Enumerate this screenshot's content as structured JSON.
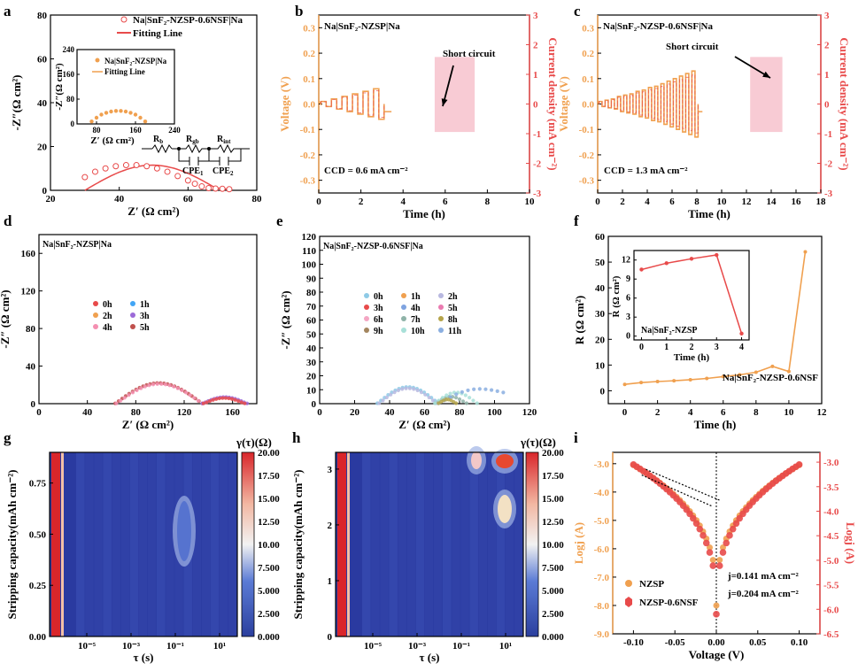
{
  "colors": {
    "orange": "#f0a04f",
    "red": "#e84a4a",
    "blue_dark": "#3949ab",
    "pink_box": "#f6b9c5"
  },
  "chart_data": [
    {
      "panel": "a",
      "type": "scatter",
      "panel_label": "a",
      "xlabel": "Z′ (Ω cm²)",
      "ylabel": "-Z″(Ω cm²)",
      "xlim": [
        20,
        80
      ],
      "ylim": [
        0,
        80
      ],
      "xticks": [
        "20",
        "40",
        "60",
        "80"
      ],
      "yticks": [
        "0",
        "20",
        "40",
        "60",
        "80"
      ],
      "legend": [
        "Na|SnF₂-NZSP-0.6NSF|Na",
        "Fitting Line"
      ],
      "series": [
        {
          "name": "Na|SnF₂-NZSP-0.6NSF|Na",
          "x": [
            30,
            33,
            36,
            39,
            42,
            45,
            48,
            51,
            54,
            57,
            60,
            62,
            64,
            66,
            68,
            70,
            72
          ],
          "y": [
            6,
            8.5,
            10,
            11,
            11.5,
            11.5,
            11,
            10,
            8.5,
            6.5,
            4.5,
            3,
            1.8,
            1,
            0.8,
            0.7,
            0.5
          ]
        }
      ],
      "inset": {
        "xlabel": "Z′ (Ω cm²)",
        "ylabel": "-Z″(Ω cm²)",
        "xticks": [
          "80",
          "160",
          "240"
        ],
        "yticks": [
          "0",
          "80",
          "160",
          "240"
        ],
        "xlim": [
          40,
          240
        ],
        "ylim": [
          0,
          240
        ],
        "legend": [
          "Na|SnF₂-NZSP|Na",
          "Fitting Line"
        ],
        "series": [
          {
            "name": "Na|SnF₂-NZSP|Na",
            "x": [
              70,
              80,
              90,
              100,
              110,
              120,
              130,
              140,
              150,
              160,
              170,
              180
            ],
            "y": [
              8,
              20,
              30,
              36,
              40,
              42,
              42,
              40,
              36,
              30,
              20,
              8
            ]
          }
        ]
      },
      "circuit": [
        "R",
        "b",
        "R",
        "gb",
        "R",
        "int",
        "CPE",
        "1",
        "CPE",
        "2"
      ]
    },
    {
      "panel": "b",
      "type": "line",
      "panel_label": "b",
      "title": "Na|SnF₂-NZSP|Na",
      "xlabel": "Time (h)",
      "ylabel": "Voltage (V)",
      "y2label": "Current density (mA cm⁻²)",
      "xlim": [
        0,
        10
      ],
      "ylim": [
        -0.35,
        0.35
      ],
      "y2lim": [
        -3,
        3
      ],
      "xticks": [
        "0",
        "2",
        "4",
        "6",
        "8",
        "10"
      ],
      "yticks": [
        "-0.3",
        "-0.2",
        "-0.1",
        "0.0",
        "0.1",
        "0.2",
        "0.3"
      ],
      "y2ticks": [
        "-3",
        "-2",
        "-1",
        "0",
        "1",
        "2",
        "3"
      ],
      "annotation": "Short circuit",
      "ccd": "CCD = 0.6 mA cm⁻²",
      "steps": [
        0.01,
        0.02,
        0.03,
        0.04,
        0.05,
        0.06
      ],
      "step_duration_h": 0.5
    },
    {
      "panel": "c",
      "type": "line",
      "panel_label": "c",
      "title": "Na|SnF₂-NZSP-0.6NSF|Na",
      "xlabel": "Time (h)",
      "ylabel": "Voltage (V)",
      "y2label": "Current density (mA cm⁻²)",
      "xlim": [
        0,
        18
      ],
      "ylim": [
        -0.35,
        0.35
      ],
      "y2lim": [
        -3,
        3
      ],
      "xticks": [
        "0",
        "2",
        "4",
        "6",
        "8",
        "10",
        "12",
        "14",
        "16",
        "18"
      ],
      "yticks": [
        "-0.3",
        "-0.2",
        "-0.1",
        "0.0",
        "0.1",
        "0.2",
        "0.3"
      ],
      "y2ticks": [
        "-3",
        "-2",
        "-1",
        "0",
        "1",
        "2",
        "3"
      ],
      "annotation": "Short circuit",
      "ccd": "CCD = 1.3 mA cm⁻²",
      "steps": [
        0.01,
        0.015,
        0.02,
        0.03,
        0.035,
        0.04,
        0.05,
        0.055,
        0.065,
        0.07,
        0.08,
        0.09,
        0.1,
        0.11,
        0.12,
        0.13
      ],
      "step_duration_h": 0.5
    },
    {
      "panel": "d",
      "type": "scatter",
      "panel_label": "d",
      "title": "Na|SnF₂-NZSP|Na",
      "xlabel": "Z′ (Ω cm²)",
      "ylabel": "-Z″ (Ω cm²)",
      "xlim": [
        0,
        180
      ],
      "ylim": [
        0,
        180
      ],
      "xticks": [
        "0",
        "40",
        "80",
        "120",
        "160"
      ],
      "yticks": [
        "0",
        "40",
        "80",
        "120",
        "160"
      ],
      "legend": [
        "0h",
        "1h",
        "2h",
        "3h",
        "4h",
        "5h"
      ],
      "legend_colors": [
        "#e84a4a",
        "#42a5f5",
        "#f0a04f",
        "#9c6ad8",
        "#f48fb1",
        "#c0504d"
      ]
    },
    {
      "panel": "e",
      "type": "scatter",
      "panel_label": "e",
      "title": "Na|SnF₂-NZSP-0.6NSF|Na",
      "xlabel": "Z′ (Ω cm²)",
      "ylabel": "-Z″ (Ω cm²)",
      "xlim": [
        0,
        120
      ],
      "ylim": [
        0,
        120
      ],
      "xticks": [
        "0",
        "20",
        "40",
        "60",
        "80",
        "100",
        "120"
      ],
      "yticks": [
        "0",
        "10",
        "20",
        "30",
        "40",
        "50",
        "60",
        "70",
        "80",
        "90",
        "100",
        "110",
        "120"
      ],
      "legend": [
        "0h",
        "1h",
        "2h",
        "3h",
        "4h",
        "5h",
        "6h",
        "7h",
        "8h",
        "9h",
        "10h",
        "11h"
      ],
      "legend_colors": [
        "#8ecae6",
        "#f0a04f",
        "#b8b8e0",
        "#e84a4a",
        "#7ea3e0",
        "#ea7ab0",
        "#f4a6c3",
        "#8fb3a8",
        "#b5a44a",
        "#a3855e",
        "#a8e0d8",
        "#8aaee0"
      ]
    },
    {
      "panel": "f",
      "type": "line",
      "panel_label": "f",
      "xlabel": "Time (h)",
      "ylabel": "R (Ω cm²)",
      "xlim": [
        -1,
        12
      ],
      "ylim": [
        -5,
        60
      ],
      "xticks": [
        "0",
        "2",
        "4",
        "6",
        "8",
        "10",
        "12"
      ],
      "yticks": [
        "0",
        "10",
        "20",
        "30",
        "40",
        "50",
        "60"
      ],
      "series": [
        {
          "name": "Na|SnF₂-NZSP-0.6NSF",
          "x": [
            0,
            1,
            2,
            3,
            4,
            5,
            6,
            7,
            8,
            9,
            10,
            11
          ],
          "y": [
            2.5,
            3.2,
            3.6,
            3.9,
            4.3,
            4.8,
            5.5,
            6.2,
            7.2,
            9.5,
            7.5,
            54
          ]
        }
      ],
      "inset": {
        "label": "Na|SnF₂-NZSP",
        "xlabel": "Time (h)",
        "ylabel": "R (Ω cm²)",
        "xticks": [
          "0",
          "1",
          "2",
          "3",
          "4"
        ],
        "yticks": [
          "0",
          "3",
          "6",
          "9",
          "12"
        ],
        "x": [
          0,
          1,
          2,
          3,
          4
        ],
        "y": [
          10.5,
          11.5,
          12.2,
          12.8,
          0.4
        ]
      }
    },
    {
      "panel": "g",
      "type": "heatmap",
      "panel_label": "g",
      "xlabel": "τ (s)",
      "ylabel": "Stripping capacity(mAh cm⁻²)",
      "ylim": [
        0,
        0.9
      ],
      "yticks": [
        "0.00",
        "0.25",
        "0.50",
        "0.75"
      ],
      "xticks": [
        "10⁻⁵",
        "10⁻³",
        "10⁻¹",
        "10¹"
      ],
      "colorbar_title": "γ(τ)(Ω)",
      "colorbar_ticks": [
        "0.000",
        "2.500",
        "5.000",
        "7.500",
        "10.00",
        "12.50",
        "15.00",
        "17.50",
        "20.00"
      ]
    },
    {
      "panel": "h",
      "type": "heatmap",
      "panel_label": "h",
      "xlabel": "τ (s)",
      "ylabel": "Stripping capacity(mAh cm⁻²)",
      "ylim": [
        0,
        3.3
      ],
      "yticks": [
        "0",
        "1",
        "2",
        "3"
      ],
      "xticks": [
        "10⁻⁵",
        "10⁻³",
        "10⁻¹",
        "10¹"
      ],
      "colorbar_title": "γ(τ)(Ω)",
      "colorbar_ticks": [
        "0.000",
        "2.500",
        "5.000",
        "7.500",
        "10.00",
        "12.50",
        "15.00",
        "17.50",
        "20.00"
      ]
    },
    {
      "panel": "i",
      "type": "line",
      "panel_label": "i",
      "xlabel": "Voltage (V)",
      "ylabel": "Logj (A)",
      "y2label": "Logj (A)",
      "xlim": [
        -0.125,
        0.125
      ],
      "ylim": [
        -9,
        -2.6
      ],
      "y2lim": [
        -6.5,
        -2.8
      ],
      "xticks": [
        "-0.10",
        "-0.05",
        "0.00",
        "0.05",
        "0.10"
      ],
      "yticks": [
        "-3.0",
        "-4.0",
        "-5.0",
        "-6.0",
        "-7.0",
        "-8.0",
        "-9.0"
      ],
      "y2ticks": [
        "-3.0",
        "-3.5",
        "-4.0",
        "-4.5",
        "-5.0",
        "-5.5",
        "-6.0",
        "-6.5"
      ],
      "legend": [
        "NZSP",
        "NZSP-0.6NSF"
      ],
      "annotations": [
        "j=0.141 mA cm⁻²",
        "j=0.204 mA cm⁻²"
      ]
    }
  ]
}
